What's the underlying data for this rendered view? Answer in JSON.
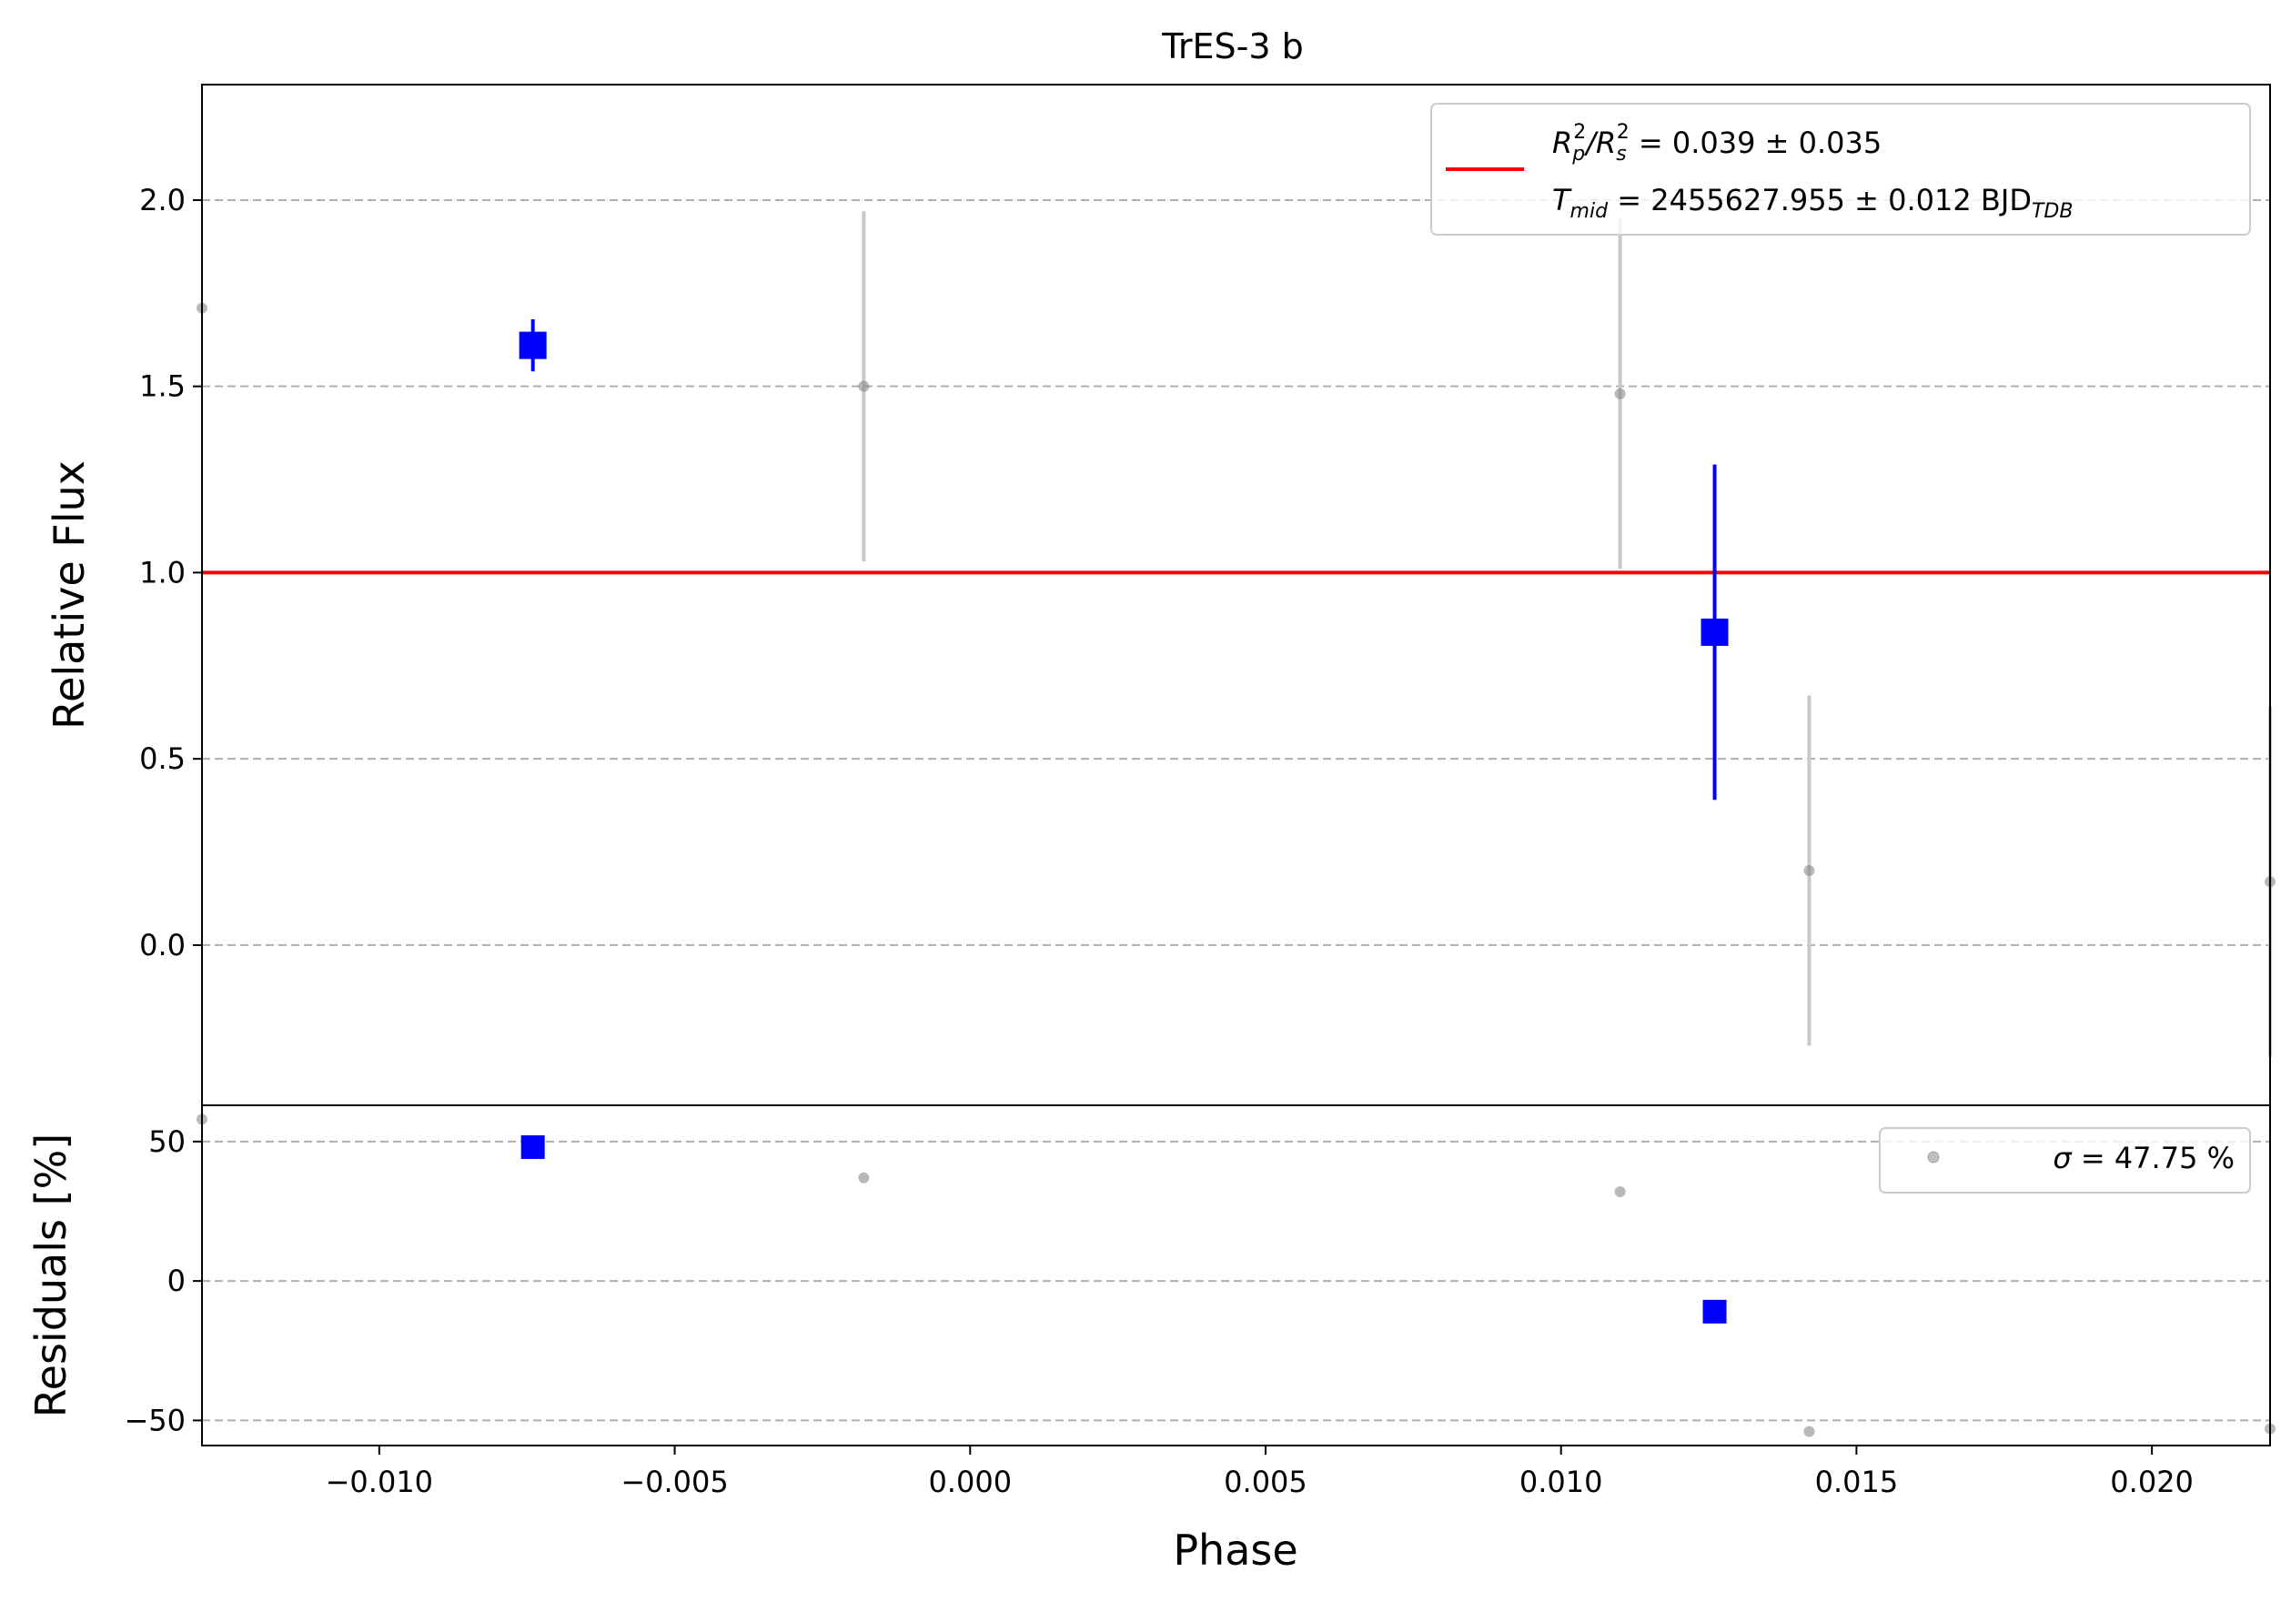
{
  "chart_data": [
    {
      "type": "scatter",
      "title": "TrES-3 b",
      "xlabel": "",
      "ylabel": "Relative Flux",
      "xlim": [
        -0.013,
        0.022
      ],
      "ylim": [
        -0.43,
        2.31
      ],
      "yticks": [
        0.0,
        0.5,
        1.0,
        1.5,
        2.0
      ],
      "ytick_labels": [
        "0.0",
        "0.5",
        "1.0",
        "1.5",
        "2.0"
      ],
      "grid": "horizontal dashed",
      "model_line": {
        "y": 1.0,
        "color": "#ff0000"
      },
      "raw_points": [
        {
          "x": -0.013,
          "y": 1.71,
          "err": 0.0
        },
        {
          "x": -0.0018,
          "y": 1.5,
          "err": 0.47
        },
        {
          "x": 0.011,
          "y": 1.48,
          "err": 0.47
        },
        {
          "x": 0.0142,
          "y": 0.2,
          "err": 0.47
        },
        {
          "x": 0.022,
          "y": 0.17,
          "err": 0.47
        }
      ],
      "binned_points": [
        {
          "x": -0.0074,
          "y": 1.61,
          "err": 0.07
        },
        {
          "x": 0.0126,
          "y": 0.84,
          "err": 0.45
        }
      ],
      "legend": {
        "placement": "top-right",
        "line1_parts": [
          "R",
          "p",
          "2",
          "/R",
          "s",
          "2",
          " = 0.039 ± 0.035"
        ],
        "line2_parts": [
          "T",
          "mid",
          " = 2455627.955 ± 0.012 BJD",
          "TDB"
        ]
      }
    },
    {
      "type": "scatter",
      "xlabel": "Phase",
      "ylabel": "Residuals [%]",
      "xlim": [
        -0.013,
        0.022
      ],
      "ylim": [
        -59,
        63
      ],
      "yticks": [
        -50,
        0,
        50
      ],
      "ytick_labels": [
        "−50",
        "0",
        "50"
      ],
      "xticks": [
        -0.01,
        -0.005,
        0.0,
        0.005,
        0.01,
        0.015,
        0.02
      ],
      "xtick_labels": [
        "−0.010",
        "−0.005",
        "0.000",
        "0.005",
        "0.010",
        "0.015",
        "0.020"
      ],
      "grid": "horizontal dashed",
      "raw_points": [
        {
          "x": -0.013,
          "y": 58
        },
        {
          "x": -0.0018,
          "y": 37
        },
        {
          "x": 0.011,
          "y": 32
        },
        {
          "x": 0.0142,
          "y": -54
        },
        {
          "x": 0.022,
          "y": -53
        }
      ],
      "binned_points": [
        {
          "x": -0.0074,
          "y": 48
        },
        {
          "x": 0.0126,
          "y": -11
        }
      ],
      "legend": {
        "placement": "top-right",
        "sigma_symbol": "σ",
        "text": " = 47.75 %"
      }
    }
  ],
  "colors": {
    "raw": "#808080",
    "raw_err": "#c8c8c8",
    "binned": "#0000ff",
    "model": "#ff0000",
    "grid": "#b0b0b0"
  }
}
